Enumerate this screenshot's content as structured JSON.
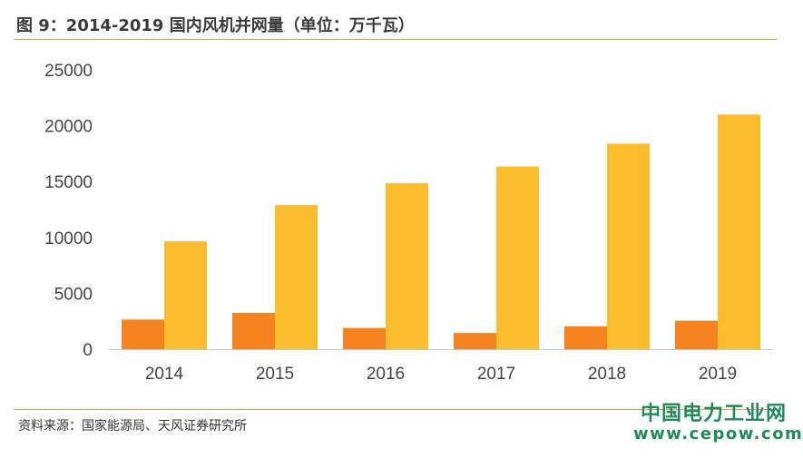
{
  "header": {
    "title": "图 9：2014-2019 国内风机并网量（单位：万千瓦）"
  },
  "footer": {
    "source": "资料来源：国家能源局、天风证券研究所"
  },
  "watermark": {
    "cn": "中国电力工业网",
    "en": "www.cepow.com"
  },
  "colors": {
    "series1": "#f5831f",
    "series2": "#fbbd2e",
    "rule": "#f0a04a",
    "axis": "#c8c8c8",
    "watermark": "#1f8b5c"
  },
  "chart_data": {
    "type": "bar",
    "title": "图 9：2014-2019 国内风机并网量（单位：万千瓦）",
    "categories": [
      "2014",
      "2015",
      "2016",
      "2017",
      "2018",
      "2019"
    ],
    "series": [
      {
        "values": [
          2650,
          3250,
          1900,
          1450,
          2050,
          2550
        ]
      },
      {
        "values": [
          9650,
          12900,
          14850,
          16350,
          18400,
          21000
        ]
      }
    ],
    "ylim": [
      0,
      25000
    ],
    "yticks": [
      0,
      5000,
      10000,
      15000,
      20000,
      25000
    ],
    "grid": false,
    "legend": "none"
  }
}
